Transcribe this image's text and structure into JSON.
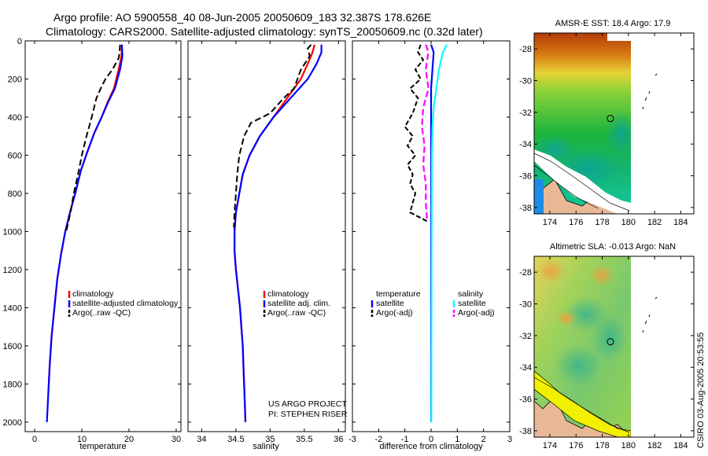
{
  "title": {
    "line1": "Argo profile: AO 5900558_40 08-Jun-2005 20050609_183 32.387S 178.626E",
    "line2": "Climatology: CARS2000. Satellite-adjusted climatology: synTS_20050609.nc (0.32d later)"
  },
  "credit": {
    "line1": "US ARGO PROJECT",
    "line2": "PI: STEPHEN RISER"
  },
  "stamp": "CSIRO 03-Aug-2005 20:53:55",
  "colors": {
    "red": "#ff0000",
    "blue": "#0000ff",
    "black": "#000000",
    "cyan": "#00ffff",
    "magenta": "#ff00ff"
  },
  "chart_data": [
    {
      "type": "line",
      "xlabel": "temperature",
      "xlim": [
        -2,
        31
      ],
      "ylim": [
        0,
        2050
      ],
      "y_reversed": true,
      "xticks": [
        0,
        10,
        20,
        30
      ],
      "yticks": [
        0,
        200,
        400,
        600,
        800,
        1000,
        1200,
        1400,
        1600,
        1800,
        2000
      ],
      "legend": [
        "climatology",
        "satellite-adjusted climatology",
        "Argo(..raw -QC)"
      ],
      "series": [
        {
          "name": "climatology",
          "color": "red",
          "dash": "",
          "points": [
            [
              18.5,
              20
            ],
            [
              18.4,
              80
            ],
            [
              17.8,
              150
            ],
            [
              16.8,
              250
            ],
            [
              15.5,
              320
            ],
            [
              14.2,
              400
            ],
            [
              12.7,
              480
            ],
            [
              11.2,
              580
            ],
            [
              9.8,
              680
            ],
            [
              8.6,
              800
            ],
            [
              7.5,
              900
            ],
            [
              6.5,
              1000
            ],
            [
              5.6,
              1120
            ],
            [
              4.8,
              1250
            ],
            [
              4.2,
              1400
            ],
            [
              3.6,
              1550
            ],
            [
              3.2,
              1700
            ],
            [
              2.9,
              1850
            ]
          ]
        },
        {
          "name": "satellite-adjusted climatology",
          "color": "blue",
          "dash": "",
          "points": [
            [
              18.5,
              20
            ],
            [
              18.6,
              80
            ],
            [
              18.1,
              150
            ],
            [
              17.0,
              250
            ],
            [
              15.6,
              320
            ],
            [
              14.2,
              400
            ],
            [
              12.7,
              480
            ],
            [
              11.2,
              580
            ],
            [
              9.8,
              680
            ],
            [
              8.6,
              800
            ],
            [
              7.5,
              900
            ],
            [
              6.5,
              1000
            ],
            [
              5.6,
              1120
            ],
            [
              4.8,
              1250
            ],
            [
              4.2,
              1400
            ],
            [
              3.6,
              1550
            ],
            [
              3.2,
              1700
            ],
            [
              2.9,
              1850
            ],
            [
              2.6,
              2000
            ]
          ]
        },
        {
          "name": "Argo(..raw -QC)",
          "color": "black",
          "dash": "8,4",
          "points": [
            [
              18.1,
              20
            ],
            [
              18.0,
              60
            ],
            [
              17.8,
              90
            ],
            [
              16.5,
              150
            ],
            [
              15.0,
              200
            ],
            [
              14.0,
              250
            ],
            [
              13.1,
              300
            ],
            [
              12.1,
              400
            ],
            [
              11.0,
              500
            ],
            [
              10.0,
              600
            ],
            [
              9.2,
              700
            ],
            [
              8.3,
              800
            ],
            [
              7.6,
              900
            ],
            [
              6.7,
              1000
            ]
          ]
        }
      ]
    },
    {
      "type": "line",
      "xlabel": "salinity",
      "xlim": [
        33.8,
        36.1
      ],
      "ylim": [
        0,
        2050
      ],
      "y_reversed": true,
      "xticks": [
        34,
        34.5,
        35,
        35.5,
        36
      ],
      "xticklabels": [
        "34",
        "34.5",
        "35",
        "35.5",
        "36"
      ],
      "yticks": [
        0,
        200,
        400,
        600,
        800,
        1000,
        1200,
        1400,
        1600,
        1800,
        2000
      ],
      "legend": [
        "climatology",
        "satellite adj. clim.",
        "Argo(..raw -QC)"
      ],
      "series": [
        {
          "name": "climatology",
          "color": "red",
          "dash": "",
          "points": [
            [
              35.65,
              20
            ],
            [
              35.62,
              60
            ],
            [
              35.55,
              120
            ],
            [
              35.45,
              200
            ],
            [
              35.25,
              300
            ],
            [
              35.05,
              400
            ],
            [
              34.85,
              500
            ],
            [
              34.7,
              600
            ],
            [
              34.6,
              700
            ],
            [
              34.55,
              800
            ],
            [
              34.5,
              900
            ],
            [
              34.48,
              1000
            ],
            [
              34.48,
              1100
            ],
            [
              34.5,
              1200
            ],
            [
              34.53,
              1300
            ],
            [
              34.56,
              1400
            ],
            [
              34.58,
              1500
            ],
            [
              34.6,
              1600
            ],
            [
              34.61,
              1700
            ],
            [
              34.62,
              1800
            ],
            [
              34.63,
              1900
            ],
            [
              34.64,
              2000
            ]
          ]
        },
        {
          "name": "satellite adj. clim.",
          "color": "blue",
          "dash": "",
          "points": [
            [
              35.75,
              20
            ],
            [
              35.75,
              60
            ],
            [
              35.68,
              120
            ],
            [
              35.55,
              200
            ],
            [
              35.3,
              300
            ],
            [
              35.05,
              400
            ],
            [
              34.85,
              500
            ],
            [
              34.7,
              600
            ],
            [
              34.6,
              700
            ],
            [
              34.55,
              800
            ],
            [
              34.5,
              900
            ],
            [
              34.48,
              1000
            ],
            [
              34.48,
              1100
            ],
            [
              34.5,
              1200
            ],
            [
              34.53,
              1300
            ],
            [
              34.56,
              1400
            ],
            [
              34.58,
              1500
            ],
            [
              34.6,
              1600
            ],
            [
              34.61,
              1700
            ],
            [
              34.62,
              1800
            ],
            [
              34.63,
              1900
            ],
            [
              34.64,
              2000
            ]
          ]
        },
        {
          "name": "Argo(..raw -QC)",
          "color": "black",
          "dash": "8,4",
          "points": [
            [
              35.6,
              20
            ],
            [
              35.55,
              40
            ],
            [
              35.58,
              80
            ],
            [
              35.45,
              150
            ],
            [
              35.35,
              250
            ],
            [
              35.2,
              300
            ],
            [
              35.0,
              380
            ],
            [
              34.72,
              430
            ],
            [
              34.62,
              500
            ],
            [
              34.55,
              600
            ],
            [
              34.52,
              700
            ],
            [
              34.5,
              800
            ],
            [
              34.48,
              900
            ],
            [
              34.47,
              980
            ]
          ]
        }
      ]
    },
    {
      "type": "line",
      "xlabel": "difference from climatology",
      "xlim": [
        -3,
        3
      ],
      "ylim": [
        0,
        2050
      ],
      "y_reversed": true,
      "xticks": [
        -3,
        -2,
        -1,
        0,
        1,
        2,
        3
      ],
      "yticks": [
        0,
        200,
        400,
        600,
        800,
        1000,
        1200,
        1400,
        1600,
        1800,
        2000
      ],
      "legend_left": [
        "temperature",
        "satellite",
        "Argo(-adj)"
      ],
      "legend_right": [
        "salinity",
        "satellite",
        "Argo(-adj)"
      ],
      "series": [
        {
          "name": "satellite",
          "color": "blue",
          "dash": "",
          "points": [
            [
              0,
              20
            ],
            [
              0.1,
              60
            ],
            [
              0.05,
              150
            ],
            [
              0,
              250
            ],
            [
              0,
              400
            ],
            [
              0,
              2000
            ]
          ]
        },
        {
          "name": "Argo(-adj)",
          "color": "black",
          "dash": "6,3",
          "points": [
            [
              -0.4,
              20
            ],
            [
              -0.5,
              60
            ],
            [
              -0.3,
              100
            ],
            [
              -0.6,
              150
            ],
            [
              -0.4,
              200
            ],
            [
              -0.8,
              250
            ],
            [
              -0.5,
              300
            ],
            [
              -0.7,
              380
            ],
            [
              -1.0,
              450
            ],
            [
              -0.7,
              500
            ],
            [
              -0.9,
              550
            ],
            [
              -0.6,
              600
            ],
            [
              -0.9,
              650
            ],
            [
              -0.7,
              700
            ],
            [
              -0.8,
              750
            ],
            [
              -0.6,
              800
            ],
            [
              -0.8,
              900
            ],
            [
              -0.1,
              950
            ]
          ]
        },
        {
          "name": "satellite",
          "color": "cyan",
          "dash": "",
          "points": [
            [
              0.6,
              20
            ],
            [
              0.45,
              60
            ],
            [
              0.3,
              150
            ],
            [
              0.2,
              250
            ],
            [
              0.1,
              350
            ],
            [
              0.05,
              450
            ],
            [
              0.03,
              600
            ],
            [
              0.02,
              1000
            ],
            [
              0.01,
              2000
            ]
          ]
        },
        {
          "name": "Argo(-adj)",
          "color": "magenta",
          "dash": "8,4",
          "points": [
            [
              -0.2,
              20
            ],
            [
              -0.1,
              60
            ],
            [
              -0.15,
              100
            ],
            [
              -0.2,
              150
            ],
            [
              -0.1,
              250
            ],
            [
              -0.3,
              350
            ],
            [
              -0.35,
              450
            ],
            [
              -0.25,
              550
            ],
            [
              -0.3,
              650
            ],
            [
              -0.2,
              750
            ],
            [
              -0.2,
              850
            ],
            [
              -0.15,
              950
            ]
          ]
        }
      ]
    },
    {
      "type": "heatmap",
      "title": "AMSR-E SST: 18.4 Argo: 17.9",
      "xlim": [
        172.8,
        185
      ],
      "ylim": [
        -38.4,
        -27
      ],
      "xticks": [
        174,
        176,
        178,
        180,
        182,
        184
      ],
      "yticks": [
        -28,
        -30,
        -32,
        -34,
        -36,
        -38
      ],
      "marker": {
        "lon": 178.626,
        "lat": -32.387
      }
    },
    {
      "type": "heatmap",
      "title": "Altimetric SLA: -0.013 Argo: NaN",
      "xlim": [
        172.8,
        185
      ],
      "ylim": [
        -38.4,
        -27
      ],
      "xticks": [
        174,
        176,
        178,
        180,
        182,
        184
      ],
      "yticks": [
        -28,
        -30,
        -32,
        -34,
        -36,
        -38
      ],
      "marker": {
        "lon": 178.626,
        "lat": -32.387
      }
    }
  ]
}
